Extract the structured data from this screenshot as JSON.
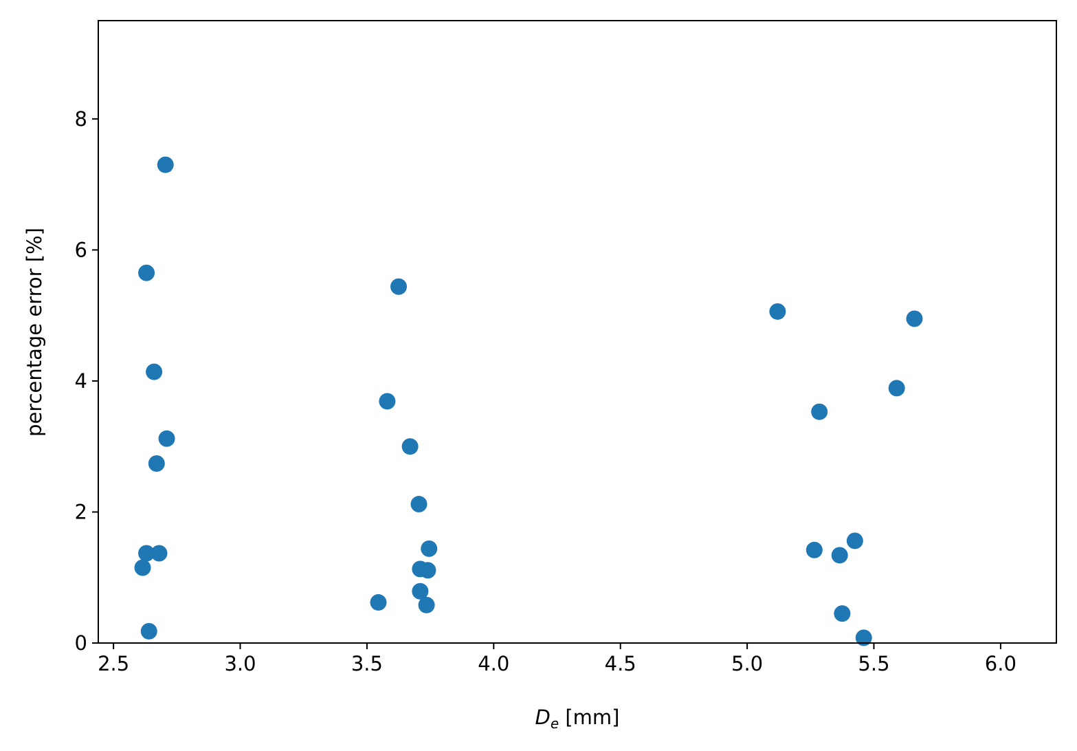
{
  "chart_data": {
    "type": "scatter",
    "title": "",
    "xlabel": {
      "symbol": "D",
      "subscript": "e",
      "unit": " [mm]"
    },
    "ylabel": "percentage error [%]",
    "xlim": [
      2.44,
      6.22
    ],
    "ylim": [
      0,
      9.5
    ],
    "xticks": [
      2.5,
      3.0,
      3.5,
      4.0,
      4.5,
      5.0,
      5.5,
      6.0
    ],
    "xtick_labels": [
      "2.5",
      "3.0",
      "3.5",
      "4.0",
      "4.5",
      "5.0",
      "5.5",
      "6.0"
    ],
    "yticks": [
      0,
      2,
      4,
      6,
      8
    ],
    "ytick_labels": [
      "0",
      "2",
      "4",
      "6",
      "8"
    ],
    "grid": false,
    "marker_color": "#1f77b4",
    "series": [
      {
        "points": [
          [
            2.705,
            7.3
          ],
          [
            2.63,
            5.65
          ],
          [
            2.66,
            4.14
          ],
          [
            2.71,
            3.12
          ],
          [
            2.67,
            2.74
          ],
          [
            2.63,
            1.37
          ],
          [
            2.68,
            1.37
          ],
          [
            2.615,
            1.15
          ],
          [
            2.64,
            0.18
          ],
          [
            3.625,
            5.44
          ],
          [
            3.58,
            3.69
          ],
          [
            3.67,
            3.0
          ],
          [
            3.705,
            2.12
          ],
          [
            3.745,
            1.44
          ],
          [
            3.71,
            1.13
          ],
          [
            3.74,
            1.11
          ],
          [
            3.71,
            0.79
          ],
          [
            3.545,
            0.62
          ],
          [
            3.735,
            0.58
          ],
          [
            5.12,
            5.06
          ],
          [
            5.66,
            4.95
          ],
          [
            5.59,
            3.89
          ],
          [
            5.285,
            3.53
          ],
          [
            5.425,
            1.56
          ],
          [
            5.265,
            1.42
          ],
          [
            5.365,
            1.34
          ],
          [
            5.375,
            0.45
          ],
          [
            5.46,
            0.08
          ]
        ]
      }
    ]
  }
}
